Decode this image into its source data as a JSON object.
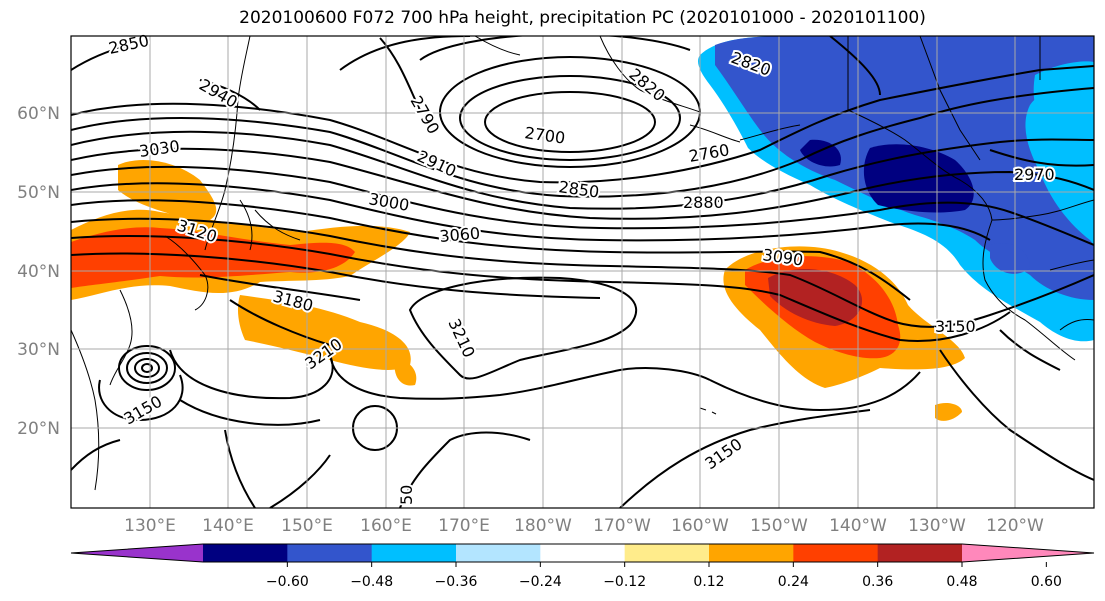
{
  "title": "2020100600 F072 700 hPa height, precipitation PC (2020101000 - 2020101100)",
  "lat_labels": [
    "60°N",
    "50°N",
    "40°N",
    "30°N",
    "20°N"
  ],
  "lon_labels": [
    "130°E",
    "140°E",
    "150°E",
    "160°E",
    "170°E",
    "180°W",
    "170°W",
    "160°W",
    "150°W",
    "140°W",
    "130°W",
    "120°W"
  ],
  "contour_labels": [
    "2850",
    "2940",
    "3030",
    "3120",
    "3180",
    "3210",
    "3150",
    "2790",
    "2910",
    "3000",
    "3060",
    "2700",
    "2820",
    "2820",
    "2760",
    "2850",
    "2880",
    "2970",
    "3090",
    "3150",
    "3210",
    "50",
    "3150"
  ],
  "colorbar": {
    "colors": [
      "#9933cc",
      "#000080",
      "#3355cc",
      "#00bfff",
      "#b3e5ff",
      "#ffffff",
      "#ffec8b",
      "#ffa500",
      "#ff4000",
      "#b22222",
      "#ff88bb"
    ],
    "tick_labels": [
      "−0.60",
      "−0.48",
      "−0.36",
      "−0.24",
      "−0.12",
      "0.12",
      "0.24",
      "0.36",
      "0.48",
      "0.60"
    ]
  }
}
